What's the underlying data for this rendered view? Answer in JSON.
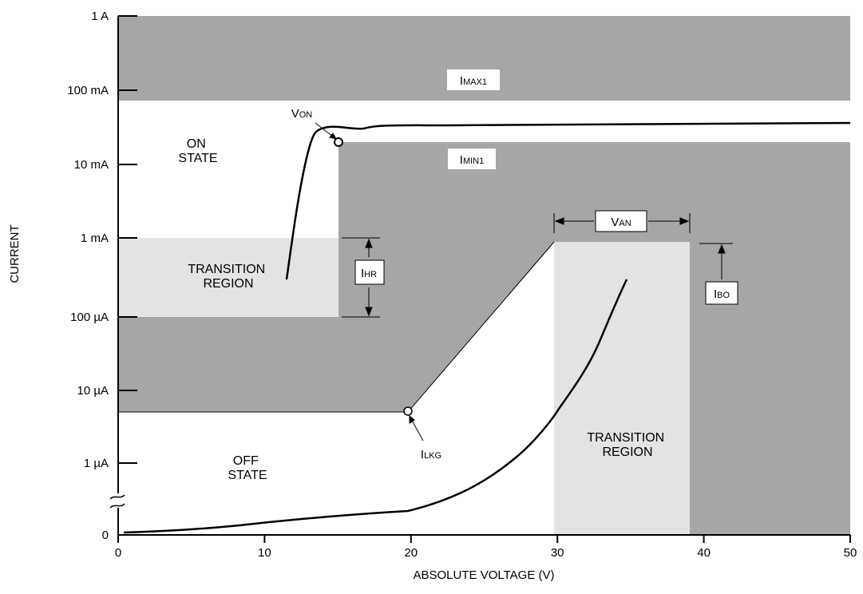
{
  "chart_data": {
    "type": "line",
    "xlabel": "ABSOLUTE VOLTAGE (V)",
    "ylabel": "CURRENT",
    "xlim": [
      0,
      50
    ],
    "x_ticks": [
      "0",
      "10",
      "20",
      "30",
      "40",
      "50"
    ],
    "y_ticks": [
      "0",
      "1 µA",
      "10 µA",
      "100 µA",
      "1 mA",
      "10 mA",
      "100 mA",
      "1 A"
    ],
    "y_scale": "log (with break above 0)",
    "regions": [
      {
        "label": "IMAX1",
        "kind": "forbidden",
        "x": [
          0,
          50
        ],
        "y": [
          "70 mA",
          "1 A"
        ]
      },
      {
        "label": "IMIN1",
        "kind": "forbidden",
        "x": [
          15.2,
          50
        ],
        "y": [
          "5 µA",
          "20 mA"
        ]
      },
      {
        "label": "TRANSITION REGION",
        "kind": "transition",
        "x": [
          0,
          15.2
        ],
        "y": [
          "100 µA",
          "1 mA"
        ]
      },
      {
        "label": "TRANSITION REGION",
        "kind": "transition",
        "x": [
          29.8,
          39.2
        ],
        "y": [
          "0",
          "0.9 mA"
        ]
      }
    ],
    "state_labels": [
      "ON STATE",
      "OFF STATE"
    ],
    "annotations": [
      {
        "main": "V",
        "sub": "ON",
        "point": {
          "x": 15.2,
          "y": "20 mA"
        }
      },
      {
        "main": "I",
        "sub": "LKG",
        "point": {
          "x": 19.9,
          "y": "5 µA"
        }
      },
      {
        "main": "I",
        "sub": "HR",
        "span": [
          "100 µA",
          "1 mA"
        ]
      },
      {
        "main": "V",
        "sub": "AN",
        "span_x": [
          29.8,
          39.2
        ]
      },
      {
        "main": "I",
        "sub": "BO",
        "at_y": "0.9 mA"
      }
    ],
    "series": [
      {
        "x": [
          11.5,
          12.2,
          13.0,
          13.6,
          14.0,
          14.6,
          15.2,
          16.0,
          16.5,
          17.0,
          18.0,
          20.0,
          25.0,
          30.0,
          35.0,
          40.0,
          45.0,
          50.0
        ],
        "y": [
          "0.3 mA",
          "1.5 mA",
          "8 mA",
          "20 mA",
          "27 mA",
          "30 mA",
          "31 mA",
          "30 mA",
          "29 mA",
          "30 mA",
          "31 mA",
          "32 mA",
          "32 mA",
          "33 mA",
          "33 mA",
          "34 mA",
          "34 mA",
          "35 mA"
        ]
      },
      {
        "x": [
          0,
          5,
          7,
          10,
          15,
          20,
          22,
          25,
          27,
          30,
          32,
          34,
          35
        ],
        "y": [
          "~0",
          "~0",
          "~0",
          "~0",
          "~0",
          "~0",
          "~0",
          "~0",
          "~0",
          "4 µA",
          "20 µA",
          "100 µA",
          "300 µA"
        ]
      }
    ]
  },
  "labels": {
    "imax": {
      "main": "I",
      "sub": "MAX1"
    },
    "imin": {
      "main": "I",
      "sub": "MIN1"
    },
    "von": {
      "main": "V",
      "sub": "ON"
    },
    "ilkg": {
      "main": "I",
      "sub": "LKG"
    },
    "ihr": {
      "main": "I",
      "sub": "HR"
    },
    "van": {
      "main": "V",
      "sub": "AN"
    },
    "ibo": {
      "main": "I",
      "sub": "BO"
    },
    "on_state": [
      "ON",
      "STATE"
    ],
    "off_state": [
      "OFF",
      "STATE"
    ],
    "transition": [
      "TRANSITION",
      "REGION"
    ]
  },
  "colors": {
    "dark_gray": "#a6a6a6",
    "light_gray": "#e3e3e3",
    "curve": "#000000"
  }
}
